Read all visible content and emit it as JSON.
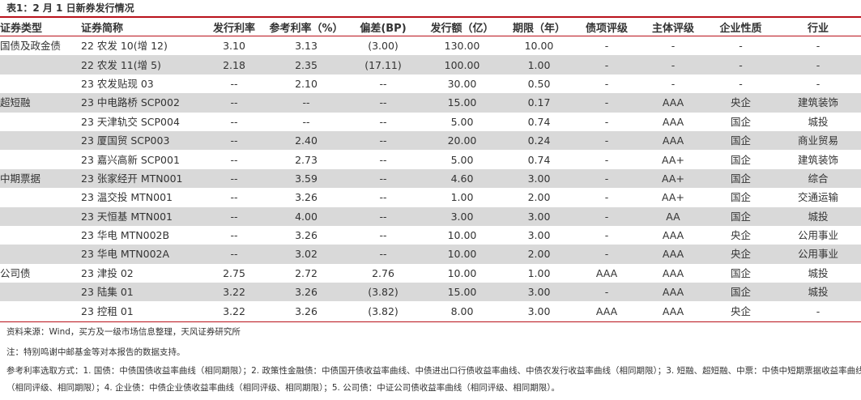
{
  "title": "表1：2 月 1 日新券发行情况",
  "headers": [
    "证券类型",
    "证券简称",
    "发行利率",
    "参考利率（%）",
    "偏差(BP)",
    "发行额（亿）",
    "期限（年）",
    "债项评级",
    "主体评级",
    "企业性质",
    "行业"
  ],
  "rows": [
    {
      "type": "国债及政金债",
      "name": "22 农发 10(增 12)",
      "rate": "3.10",
      "ref": "3.13",
      "dev": "(3.00)",
      "amount": "130.00",
      "term": "10.00",
      "bond_rating": "-",
      "issuer_rating": "-",
      "nature": "-",
      "industry": "-",
      "shaded": false
    },
    {
      "type": "",
      "name": "22 农发 11(增 5)",
      "rate": "2.18",
      "ref": "2.35",
      "dev": "(17.11)",
      "amount": "100.00",
      "term": "1.00",
      "bond_rating": "-",
      "issuer_rating": "-",
      "nature": "-",
      "industry": "-",
      "shaded": true
    },
    {
      "type": "",
      "name": "23 农发贴现 03",
      "rate": "--",
      "ref": "2.10",
      "dev": "--",
      "amount": "30.00",
      "term": "0.50",
      "bond_rating": "-",
      "issuer_rating": "-",
      "nature": "-",
      "industry": "-",
      "shaded": false
    },
    {
      "type": "超短融",
      "name": "23 中电路桥 SCP002",
      "rate": "--",
      "ref": "--",
      "dev": "--",
      "amount": "15.00",
      "term": "0.17",
      "bond_rating": "-",
      "issuer_rating": "AAA",
      "nature": "央企",
      "industry": "建筑装饰",
      "shaded": true
    },
    {
      "type": "",
      "name": "23 天津轨交 SCP004",
      "rate": "--",
      "ref": "--",
      "dev": "--",
      "amount": "5.00",
      "term": "0.74",
      "bond_rating": "-",
      "issuer_rating": "AAA",
      "nature": "国企",
      "industry": "城投",
      "shaded": false
    },
    {
      "type": "",
      "name": "23 厦国贸 SCP003",
      "rate": "--",
      "ref": "2.40",
      "dev": "--",
      "amount": "20.00",
      "term": "0.24",
      "bond_rating": "-",
      "issuer_rating": "AAA",
      "nature": "国企",
      "industry": "商业贸易",
      "shaded": true
    },
    {
      "type": "",
      "name": "23 嘉兴高新 SCP001",
      "rate": "--",
      "ref": "2.73",
      "dev": "--",
      "amount": "5.00",
      "term": "0.74",
      "bond_rating": "-",
      "issuer_rating": "AA+",
      "nature": "国企",
      "industry": "建筑装饰",
      "shaded": false
    },
    {
      "type": "中期票据",
      "name": "23 张家经开 MTN001",
      "rate": "--",
      "ref": "3.59",
      "dev": "--",
      "amount": "4.60",
      "term": "3.00",
      "bond_rating": "-",
      "issuer_rating": "AA+",
      "nature": "国企",
      "industry": "综合",
      "shaded": true
    },
    {
      "type": "",
      "name": "23 温交投 MTN001",
      "rate": "--",
      "ref": "3.26",
      "dev": "--",
      "amount": "1.00",
      "term": "2.00",
      "bond_rating": "-",
      "issuer_rating": "AA+",
      "nature": "国企",
      "industry": "交通运输",
      "shaded": false
    },
    {
      "type": "",
      "name": "23 天恒基 MTN001",
      "rate": "--",
      "ref": "4.00",
      "dev": "--",
      "amount": "3.00",
      "term": "3.00",
      "bond_rating": "-",
      "issuer_rating": "AA",
      "nature": "国企",
      "industry": "城投",
      "shaded": true
    },
    {
      "type": "",
      "name": "23 华电 MTN002B",
      "rate": "--",
      "ref": "3.26",
      "dev": "--",
      "amount": "10.00",
      "term": "3.00",
      "bond_rating": "-",
      "issuer_rating": "AAA",
      "nature": "央企",
      "industry": "公用事业",
      "shaded": false
    },
    {
      "type": "",
      "name": "23 华电 MTN002A",
      "rate": "--",
      "ref": "3.02",
      "dev": "--",
      "amount": "10.00",
      "term": "2.00",
      "bond_rating": "-",
      "issuer_rating": "AAA",
      "nature": "央企",
      "industry": "公用事业",
      "shaded": true
    },
    {
      "type": "公司债",
      "name": "23 津投 02",
      "rate": "2.75",
      "ref": "2.72",
      "dev": "2.76",
      "amount": "10.00",
      "term": "1.00",
      "bond_rating": "AAA",
      "issuer_rating": "AAA",
      "nature": "国企",
      "industry": "城投",
      "shaded": false
    },
    {
      "type": "",
      "name": "23 陆集 01",
      "rate": "3.22",
      "ref": "3.26",
      "dev": "(3.82)",
      "amount": "15.00",
      "term": "3.00",
      "bond_rating": "-",
      "issuer_rating": "AAA",
      "nature": "国企",
      "industry": "城投",
      "shaded": true
    },
    {
      "type": "",
      "name": "23 控租 01",
      "rate": "3.22",
      "ref": "3.26",
      "dev": "(3.82)",
      "amount": "8.00",
      "term": "3.00",
      "bond_rating": "AAA",
      "issuer_rating": "AAA",
      "nature": "央企",
      "industry": "-",
      "shaded": false
    }
  ],
  "notes": {
    "source": "资料来源：Wind，买方及一级市场信息整理，天风证券研究所",
    "thanks": "注：特别鸣谢中邮基金等对本报告的数据支持。",
    "ref_method_1": "参考利率选取方式：1. 国债：中债国债收益率曲线（相同期限）；2. 政策性金融债：中债国开债收益率曲线、中债进出口行债收益率曲线、中债农发行收益率曲线（相同期限）；3. 短融、超短融、中票：中债中短期票据收益率曲线",
    "ref_method_2": "（相同评级、相同期限）；4. 企业债：中债企业债收益率曲线（相同评级、相同期限）；5. 公司债：中证公司债收益率曲线（相同评级、相同期限）。"
  },
  "colors": {
    "accent_rule": "#b9121b",
    "shaded_row": "#d9d9d9"
  }
}
